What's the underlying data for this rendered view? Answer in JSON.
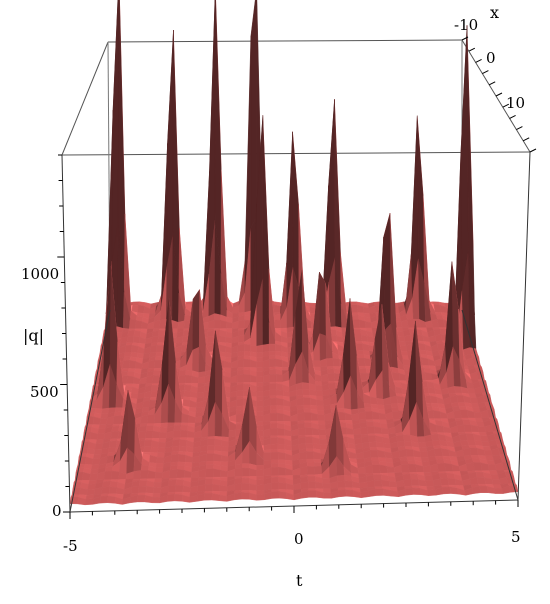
{
  "chart_data": {
    "type": "surface3d",
    "title": "",
    "xlabel": "t",
    "ylabel": "x",
    "zlabel": "|q|",
    "t_range": [
      -5,
      5
    ],
    "x_range": [
      -10,
      10
    ],
    "z_range": [
      0,
      1400
    ],
    "t_ticks": [
      "-5",
      "0",
      "5"
    ],
    "x_ticks": [
      "-10",
      "0",
      "10"
    ],
    "z_ticks": [
      "0",
      "500",
      "1000"
    ],
    "surface_color": "#f06a6a",
    "background_level": 40,
    "peaks": [
      {
        "t": -4.7,
        "x": 8.5,
        "z": 1400
      },
      {
        "t": -3.2,
        "x": 9.0,
        "z": 1150
      },
      {
        "t": -2.0,
        "x": 9.5,
        "z": 1250
      },
      {
        "t": -0.9,
        "x": 10.0,
        "z": 1420
      },
      {
        "t": -0.7,
        "x": 6.5,
        "z": 900
      },
      {
        "t": 0.2,
        "x": 8.5,
        "z": 750
      },
      {
        "t": 1.3,
        "x": 8.5,
        "z": 880
      },
      {
        "t": 3.7,
        "x": 9.0,
        "z": 800
      },
      {
        "t": 2.6,
        "x": 4.0,
        "z": 650
      },
      {
        "t": 4.8,
        "x": 6.0,
        "z": 1280
      },
      {
        "t": -4.5,
        "x": 0.5,
        "z": 520
      },
      {
        "t": -3.0,
        "x": -1.0,
        "z": 450
      },
      {
        "t": -1.8,
        "x": -2.5,
        "z": 380
      },
      {
        "t": 0.3,
        "x": 2.5,
        "z": 420
      },
      {
        "t": 1.5,
        "x": 0.0,
        "z": 400
      },
      {
        "t": 3.0,
        "x": -3.0,
        "z": 420
      },
      {
        "t": 4.2,
        "x": 2.0,
        "z": 480
      },
      {
        "t": -3.8,
        "x": -6.0,
        "z": 300
      },
      {
        "t": -1.0,
        "x": -5.5,
        "z": 260
      },
      {
        "t": 1.0,
        "x": -7.0,
        "z": 240
      },
      {
        "t": 2.3,
        "x": 1.0,
        "z": 350
      },
      {
        "t": -2.4,
        "x": 4.0,
        "z": 330
      },
      {
        "t": 0.9,
        "x": 5.0,
        "z": 360
      }
    ]
  }
}
